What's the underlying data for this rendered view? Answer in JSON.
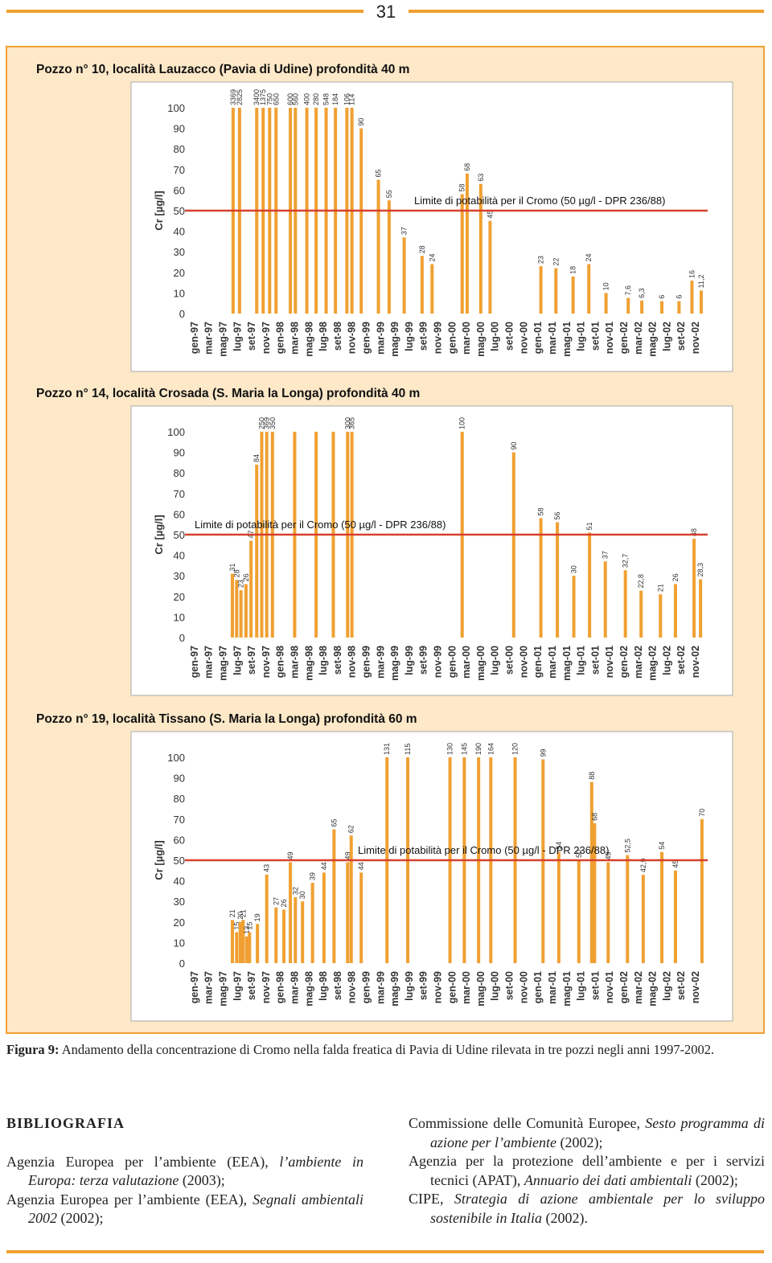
{
  "page_number": "31",
  "chart_data": [
    {
      "type": "bar",
      "title": "Pozzo n° 10, località Lauzacco (Pavia di Udine) profondità 40 m",
      "y_label": "Cr  [µg/l]",
      "color": "#f0a032",
      "limit_line": {
        "value": 50,
        "label": "Limite di potabilità per il Cromo (50 µg/l - DPR 236/88)",
        "color": "#d8402c"
      },
      "xlim": [
        -1,
        71.8
      ],
      "ylim": [
        0,
        100
      ],
      "yticks": [
        0,
        10,
        20,
        30,
        40,
        50,
        60,
        70,
        80,
        90,
        100
      ],
      "xticks": [
        {
          "value": 0,
          "label": "gen-97"
        },
        {
          "value": 2,
          "label": "mar-97"
        },
        {
          "value": 4,
          "label": "mag-97"
        },
        {
          "value": 6,
          "label": "lug-97"
        },
        {
          "value": 8,
          "label": "set-97"
        },
        {
          "value": 10,
          "label": "nov-97"
        },
        {
          "value": 12,
          "label": "gen-98"
        },
        {
          "value": 14,
          "label": "mar-98"
        },
        {
          "value": 16,
          "label": "mag-98"
        },
        {
          "value": 18,
          "label": "lug-98"
        },
        {
          "value": 20,
          "label": "set-98"
        },
        {
          "value": 22,
          "label": "nov-98"
        },
        {
          "value": 24,
          "label": "gen-99"
        },
        {
          "value": 26,
          "label": "mar-99"
        },
        {
          "value": 28,
          "label": "mag-99"
        },
        {
          "value": 30,
          "label": "lug-99"
        },
        {
          "value": 32,
          "label": "set-99"
        },
        {
          "value": 34,
          "label": "nov-99"
        },
        {
          "value": 36,
          "label": "gen-00"
        },
        {
          "value": 38,
          "label": "mar-00"
        },
        {
          "value": 40,
          "label": "mag-00"
        },
        {
          "value": 42,
          "label": "lug-00"
        },
        {
          "value": 44,
          "label": "set-00"
        },
        {
          "value": 46,
          "label": "nov-00"
        },
        {
          "value": 48,
          "label": "gen-01"
        },
        {
          "value": 50,
          "label": "mar-01"
        },
        {
          "value": 52,
          "label": "mag-01"
        },
        {
          "value": 54,
          "label": "lug-01"
        },
        {
          "value": 56,
          "label": "set-01"
        },
        {
          "value": 58,
          "label": "nov-01"
        },
        {
          "value": 60,
          "label": "gen-02"
        },
        {
          "value": 62,
          "label": "mar-02"
        },
        {
          "value": 64,
          "label": "mag-02"
        },
        {
          "value": 66,
          "label": "lug-02"
        },
        {
          "value": 68,
          "label": "set-02"
        },
        {
          "value": 70,
          "label": "nov-02"
        }
      ],
      "x": [
        5.5,
        6.4,
        8.8,
        9.7,
        10.6,
        11.5,
        13.5,
        14.2,
        15.8,
        17.1,
        18.5,
        19.8,
        21.4,
        22.1,
        23.4,
        25.8,
        27.3,
        29.4,
        31.9,
        33.3,
        37.5,
        38.2,
        40.1,
        41.4,
        48.5,
        50.6,
        53.0,
        55.2,
        57.6,
        60.7,
        62.6,
        65.4,
        67.8,
        69.6,
        70.9
      ],
      "values": [
        3369,
        2825,
        3400,
        1375,
        750,
        650,
        600,
        560,
        400,
        280,
        548,
        184,
        106,
        114,
        90,
        65,
        55,
        37,
        28,
        24,
        58,
        68,
        63,
        45,
        23,
        22,
        18,
        24,
        10,
        7.6,
        6.3,
        6,
        6,
        16,
        11.2
      ],
      "value_labels": [
        "3369",
        "2825",
        "3400",
        "1375",
        "750",
        "650",
        "600",
        "560",
        "400",
        "280",
        "548",
        "184",
        "106",
        "114",
        "90",
        "65",
        "55",
        "37",
        "28",
        "24",
        "58",
        "68",
        "63",
        "45",
        "23",
        "22",
        "18",
        "24",
        "10",
        "7,6",
        "6,3",
        "6",
        "6",
        "16",
        "11,2"
      ]
    },
    {
      "type": "bar",
      "title": "Pozzo n° 14, località Crosada (S. Maria la Longa) profondità 40 m",
      "y_label": "Cr [µg/l]",
      "color": "#f0a032",
      "limit_line": {
        "value": 50,
        "label": "Limite di potabilità per il Cromo (50 µg/l - DPR 236/88)",
        "color": "#d8402c"
      },
      "xlim": [
        -1,
        71.8
      ],
      "ylim": [
        0,
        100
      ],
      "yticks": [
        0,
        10,
        20,
        30,
        40,
        50,
        60,
        70,
        80,
        90,
        100
      ],
      "xticks": [
        {
          "value": 0,
          "label": "gen-97"
        },
        {
          "value": 2,
          "label": "mar-97"
        },
        {
          "value": 4,
          "label": "mag-97"
        },
        {
          "value": 6,
          "label": "lug-97"
        },
        {
          "value": 8,
          "label": "set-97"
        },
        {
          "value": 10,
          "label": "nov-97"
        },
        {
          "value": 12,
          "label": "gen-98"
        },
        {
          "value": 14,
          "label": "mar-98"
        },
        {
          "value": 16,
          "label": "mag-98"
        },
        {
          "value": 18,
          "label": "lug-98"
        },
        {
          "value": 20,
          "label": "set-98"
        },
        {
          "value": 22,
          "label": "nov-98"
        },
        {
          "value": 24,
          "label": "gen-99"
        },
        {
          "value": 26,
          "label": "mar-99"
        },
        {
          "value": 28,
          "label": "mag-99"
        },
        {
          "value": 30,
          "label": "lug-99"
        },
        {
          "value": 32,
          "label": "set-99"
        },
        {
          "value": 34,
          "label": "nov-99"
        },
        {
          "value": 36,
          "label": "gen-00"
        },
        {
          "value": 38,
          "label": "mar-00"
        },
        {
          "value": 40,
          "label": "mag-00"
        },
        {
          "value": 42,
          "label": "lug-00"
        },
        {
          "value": 44,
          "label": "set-00"
        },
        {
          "value": 46,
          "label": "nov-00"
        },
        {
          "value": 48,
          "label": "gen-01"
        },
        {
          "value": 50,
          "label": "mar-01"
        },
        {
          "value": 52,
          "label": "mag-01"
        },
        {
          "value": 54,
          "label": "lug-01"
        },
        {
          "value": 56,
          "label": "set-01"
        },
        {
          "value": 58,
          "label": "nov-01"
        },
        {
          "value": 60,
          "label": "gen-02"
        },
        {
          "value": 62,
          "label": "mar-02"
        },
        {
          "value": 64,
          "label": "mag-02"
        },
        {
          "value": 66,
          "label": "lug-02"
        },
        {
          "value": 68,
          "label": "set-02"
        },
        {
          "value": 70,
          "label": "nov-02"
        }
      ],
      "x": [
        5.4,
        6.0,
        6.6,
        7.3,
        8.0,
        8.8,
        9.5,
        10.2,
        11.0,
        14.1,
        17.1,
        19.5,
        21.5,
        22.1,
        37.5,
        44.7,
        48.5,
        50.8,
        53.1,
        55.3,
        57.5,
        60.3,
        62.5,
        65.2,
        67.3,
        69.9,
        70.8
      ],
      "values": [
        31,
        28,
        23,
        26,
        47,
        84,
        250,
        369,
        350,
        100,
        100,
        100,
        300,
        365,
        100,
        90,
        58,
        56,
        30,
        51,
        37,
        32.7,
        22.8,
        21,
        26,
        48,
        28.3
      ],
      "value_labels": [
        "31",
        "28",
        "23",
        "26",
        "47",
        "84",
        "250",
        "369",
        "350",
        null,
        null,
        null,
        "300",
        "365",
        "100",
        "90",
        "58",
        "56",
        "30",
        "51",
        "37",
        "32,7",
        "22,8",
        "21",
        "26",
        "48",
        "28,3"
      ]
    },
    {
      "type": "bar",
      "title": "Pozzo n° 19, località Tissano (S. Maria la Longa) profondità 60 m",
      "y_label": "Cr [µg/l]",
      "color": "#f0a032",
      "limit_line": {
        "value": 50,
        "label": "Limite di potabilità per il Cromo (50 µg/l - DPR 236/88)",
        "color": "#d8402c"
      },
      "xlim": [
        -1,
        71.8
      ],
      "ylim": [
        0,
        100
      ],
      "yticks": [
        0,
        10,
        20,
        30,
        40,
        50,
        60,
        70,
        80,
        90,
        100
      ],
      "xticks": [
        {
          "value": 0,
          "label": "gen-97"
        },
        {
          "value": 2,
          "label": "mar-97"
        },
        {
          "value": 4,
          "label": "mag-97"
        },
        {
          "value": 6,
          "label": "lug-97"
        },
        {
          "value": 8,
          "label": "set-97"
        },
        {
          "value": 10,
          "label": "nov-97"
        },
        {
          "value": 12,
          "label": "gen-98"
        },
        {
          "value": 14,
          "label": "mar-98"
        },
        {
          "value": 16,
          "label": "mag-98"
        },
        {
          "value": 18,
          "label": "lug-98"
        },
        {
          "value": 20,
          "label": "set-98"
        },
        {
          "value": 22,
          "label": "nov-98"
        },
        {
          "value": 24,
          "label": "gen-99"
        },
        {
          "value": 26,
          "label": "mar-99"
        },
        {
          "value": 28,
          "label": "mag-99"
        },
        {
          "value": 30,
          "label": "lug-99"
        },
        {
          "value": 32,
          "label": "set-99"
        },
        {
          "value": 34,
          "label": "nov-99"
        },
        {
          "value": 36,
          "label": "gen-00"
        },
        {
          "value": 38,
          "label": "mar-00"
        },
        {
          "value": 40,
          "label": "mag-00"
        },
        {
          "value": 42,
          "label": "lug-00"
        },
        {
          "value": 44,
          "label": "set-00"
        },
        {
          "value": 46,
          "label": "nov-00"
        },
        {
          "value": 48,
          "label": "gen-01"
        },
        {
          "value": 50,
          "label": "mar-01"
        },
        {
          "value": 52,
          "label": "mag-01"
        },
        {
          "value": 54,
          "label": "lug-01"
        },
        {
          "value": 56,
          "label": "set-01"
        },
        {
          "value": 58,
          "label": "nov-01"
        },
        {
          "value": 60,
          "label": "gen-02"
        },
        {
          "value": 62,
          "label": "mar-02"
        },
        {
          "value": 64,
          "label": "mag-02"
        },
        {
          "value": 66,
          "label": "lug-02"
        },
        {
          "value": 68,
          "label": "set-02"
        },
        {
          "value": 70,
          "label": "nov-02"
        }
      ],
      "x": [
        5.4,
        6.0,
        6.5,
        6.9,
        7.4,
        7.8,
        8.9,
        10.2,
        11.5,
        12.6,
        13.5,
        14.2,
        15.2,
        16.6,
        18.2,
        19.6,
        21.5,
        22.0,
        23.4,
        27.0,
        29.9,
        35.8,
        37.8,
        39.8,
        41.5,
        44.9,
        48.8,
        51.0,
        53.8,
        55.6,
        56.0,
        57.9,
        60.6,
        62.8,
        65.4,
        67.3,
        71.0
      ],
      "values": [
        21,
        15,
        20,
        21,
        13,
        15,
        19,
        43,
        27,
        26,
        49,
        32,
        30,
        39,
        44,
        65,
        49,
        62,
        44,
        131,
        115,
        130,
        145,
        190,
        164,
        120,
        99,
        54,
        50,
        88,
        68,
        49,
        52.5,
        42.9,
        54,
        45,
        70
      ],
      "value_labels": [
        "21",
        "15",
        "20",
        "21",
        "13",
        "15",
        "19",
        "43",
        "27",
        "26",
        "49",
        "32",
        "30",
        "39",
        "44",
        "65",
        "49",
        "62",
        "44",
        "131",
        "115",
        "130",
        "145",
        "190",
        "164",
        "120",
        "99",
        "54",
        "50",
        "88",
        "68",
        "49",
        "52,5",
        "42,9",
        "54",
        "45",
        "70"
      ]
    }
  ],
  "caption": {
    "label": "Figura 9:",
    "text": "Andamento della concentrazione di Cromo nella falda freatica di Pavia di Udine rilevata in tre pozzi negli anni 1997-2002."
  },
  "bibliography": {
    "heading": "BIBLIOGRAFIA",
    "entries": [
      {
        "before": "Agenzia Europea per l’ambiente (EEA), ",
        "title": "l’ambiente in Europa: terza valutazione",
        "after": " (2003);"
      },
      {
        "before": "Agenzia Europea per l’ambiente (EEA), ",
        "title": "Segnali ambientali 2002",
        "after": " (2002);"
      },
      {
        "before": "Commissione delle Comunità Europee, ",
        "title": "Sesto programma di azione per l’ambiente",
        "after": " (2002);"
      },
      {
        "before": "Agenzia per la protezione dell’ambiente e per i servizi tecnici (APAT), ",
        "title": "Annuario dei dati ambientali",
        "after": " (2002);"
      },
      {
        "before": "CIPE, ",
        "title": "Strategia di azione ambientale per lo sviluppo sostenibile in Italia",
        "after": " (2002)."
      }
    ]
  }
}
